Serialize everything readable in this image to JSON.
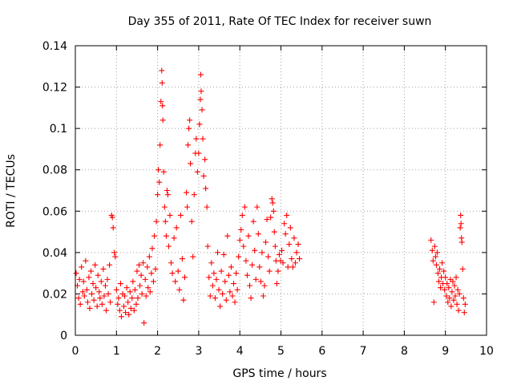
{
  "chart_data": {
    "type": "scatter",
    "title": "Day 355 of 2011, Rate Of TEC Index for receiver suwn",
    "xlabel": "GPS time / hours",
    "ylabel": "ROTI / TECUs",
    "xlim": [
      0,
      10
    ],
    "ylim": [
      0,
      0.14
    ],
    "x_ticks": [
      0,
      1,
      2,
      3,
      4,
      5,
      6,
      7,
      8,
      9,
      10
    ],
    "y_ticks": [
      0,
      0.02,
      0.04,
      0.06,
      0.08,
      0.1,
      0.12,
      0.14
    ],
    "x_tick_labels": [
      "0",
      "1",
      "2",
      "3",
      "4",
      "5",
      "6",
      "7",
      "8",
      "9",
      "10"
    ],
    "y_tick_labels": [
      "0",
      "0.02",
      "0.04",
      "0.06",
      "0.08",
      "0.1",
      "0.12",
      "0.14"
    ],
    "grid": true,
    "legend": "none",
    "marker": "plus",
    "colors": {
      "points": "#ff0000",
      "grid": "#a0a0a0",
      "frame": "#000000"
    },
    "series": [
      {
        "points": [
          [
            0.02,
            0.03
          ],
          [
            0.05,
            0.024
          ],
          [
            0.08,
            0.018
          ],
          [
            0.1,
            0.027
          ],
          [
            0.12,
            0.015
          ],
          [
            0.15,
            0.033
          ],
          [
            0.18,
            0.021
          ],
          [
            0.2,
            0.026
          ],
          [
            0.22,
            0.019
          ],
          [
            0.25,
            0.036
          ],
          [
            0.28,
            0.022
          ],
          [
            0.3,
            0.016
          ],
          [
            0.33,
            0.028
          ],
          [
            0.35,
            0.013
          ],
          [
            0.38,
            0.031
          ],
          [
            0.4,
            0.02
          ],
          [
            0.43,
            0.025
          ],
          [
            0.45,
            0.017
          ],
          [
            0.48,
            0.034
          ],
          [
            0.5,
            0.023
          ],
          [
            0.53,
            0.014
          ],
          [
            0.55,
            0.029
          ],
          [
            0.58,
            0.021
          ],
          [
            0.6,
            0.018
          ],
          [
            0.63,
            0.026
          ],
          [
            0.65,
            0.015
          ],
          [
            0.68,
            0.032
          ],
          [
            0.7,
            0.019
          ],
          [
            0.73,
            0.024
          ],
          [
            0.75,
            0.012
          ],
          [
            0.78,
            0.027
          ],
          [
            0.8,
            0.02
          ],
          [
            0.83,
            0.034
          ],
          [
            0.85,
            0.016
          ],
          [
            0.88,
            0.058
          ],
          [
            0.9,
            0.057
          ],
          [
            0.92,
            0.052
          ],
          [
            0.95,
            0.04
          ],
          [
            0.97,
            0.038
          ],
          [
            1.0,
            0.022
          ],
          [
            1.03,
            0.015
          ],
          [
            1.05,
            0.018
          ],
          [
            1.08,
            0.012
          ],
          [
            1.1,
            0.025
          ],
          [
            1.12,
            0.009
          ],
          [
            1.15,
            0.02
          ],
          [
            1.18,
            0.014
          ],
          [
            1.2,
            0.019
          ],
          [
            1.22,
            0.011
          ],
          [
            1.25,
            0.023
          ],
          [
            1.28,
            0.016
          ],
          [
            1.3,
            0.01
          ],
          [
            1.33,
            0.021
          ],
          [
            1.35,
            0.013
          ],
          [
            1.38,
            0.018
          ],
          [
            1.4,
            0.026
          ],
          [
            1.43,
            0.012
          ],
          [
            1.45,
            0.022
          ],
          [
            1.48,
            0.015
          ],
          [
            1.5,
            0.031
          ],
          [
            1.52,
            0.018
          ],
          [
            1.55,
            0.034
          ],
          [
            1.57,
            0.024
          ],
          [
            1.6,
            0.029
          ],
          [
            1.62,
            0.02
          ],
          [
            1.65,
            0.035
          ],
          [
            1.67,
            0.006
          ],
          [
            1.7,
            0.027
          ],
          [
            1.72,
            0.019
          ],
          [
            1.75,
            0.033
          ],
          [
            1.77,
            0.023
          ],
          [
            1.8,
            0.038
          ],
          [
            1.82,
            0.021
          ],
          [
            1.85,
            0.03
          ],
          [
            1.87,
            0.042
          ],
          [
            1.9,
            0.026
          ],
          [
            1.92,
            0.048
          ],
          [
            1.95,
            0.032
          ],
          [
            1.97,
            0.055
          ],
          [
            2.0,
            0.068
          ],
          [
            2.02,
            0.08
          ],
          [
            2.04,
            0.074
          ],
          [
            2.06,
            0.092
          ],
          [
            2.08,
            0.113
          ],
          [
            2.1,
            0.128
          ],
          [
            2.11,
            0.122
          ],
          [
            2.12,
            0.111
          ],
          [
            2.13,
            0.104
          ],
          [
            2.15,
            0.079
          ],
          [
            2.17,
            0.062
          ],
          [
            2.19,
            0.055
          ],
          [
            2.21,
            0.048
          ],
          [
            2.23,
            0.07
          ],
          [
            2.25,
            0.068
          ],
          [
            2.27,
            0.043
          ],
          [
            2.3,
            0.058
          ],
          [
            2.33,
            0.035
          ],
          [
            2.36,
            0.03
          ],
          [
            2.4,
            0.047
          ],
          [
            2.43,
            0.026
          ],
          [
            2.46,
            0.052
          ],
          [
            2.5,
            0.031
          ],
          [
            2.53,
            0.022
          ],
          [
            2.56,
            0.058
          ],
          [
            2.6,
            0.037
          ],
          [
            2.63,
            0.017
          ],
          [
            2.66,
            0.028
          ],
          [
            2.7,
            0.069
          ],
          [
            2.72,
            0.062
          ],
          [
            2.74,
            0.092
          ],
          [
            2.76,
            0.1
          ],
          [
            2.78,
            0.104
          ],
          [
            2.8,
            0.083
          ],
          [
            2.83,
            0.055
          ],
          [
            2.86,
            0.038
          ],
          [
            2.89,
            0.068
          ],
          [
            2.92,
            0.088
          ],
          [
            2.94,
            0.095
          ],
          [
            2.97,
            0.079
          ],
          [
            3.0,
            0.088
          ],
          [
            3.02,
            0.102
          ],
          [
            3.04,
            0.114
          ],
          [
            3.05,
            0.126
          ],
          [
            3.06,
            0.118
          ],
          [
            3.08,
            0.109
          ],
          [
            3.1,
            0.095
          ],
          [
            3.12,
            0.077
          ],
          [
            3.15,
            0.085
          ],
          [
            3.17,
            0.071
          ],
          [
            3.2,
            0.062
          ],
          [
            3.22,
            0.043
          ],
          [
            3.25,
            0.028
          ],
          [
            3.28,
            0.019
          ],
          [
            3.31,
            0.035
          ],
          [
            3.34,
            0.024
          ],
          [
            3.37,
            0.03
          ],
          [
            3.4,
            0.018
          ],
          [
            3.43,
            0.027
          ],
          [
            3.46,
            0.04
          ],
          [
            3.49,
            0.022
          ],
          [
            3.52,
            0.014
          ],
          [
            3.55,
            0.031
          ],
          [
            3.58,
            0.02
          ],
          [
            3.61,
            0.039
          ],
          [
            3.64,
            0.026
          ],
          [
            3.67,
            0.017
          ],
          [
            3.7,
            0.048
          ],
          [
            3.73,
            0.029
          ],
          [
            3.76,
            0.021
          ],
          [
            3.79,
            0.033
          ],
          [
            3.82,
            0.019
          ],
          [
            3.85,
            0.025
          ],
          [
            3.88,
            0.016
          ],
          [
            3.91,
            0.03
          ],
          [
            3.94,
            0.022
          ],
          [
            3.97,
            0.038
          ],
          [
            4.0,
            0.046
          ],
          [
            4.03,
            0.051
          ],
          [
            4.06,
            0.058
          ],
          [
            4.09,
            0.043
          ],
          [
            4.12,
            0.062
          ],
          [
            4.15,
            0.036
          ],
          [
            4.18,
            0.029
          ],
          [
            4.21,
            0.048
          ],
          [
            4.24,
            0.024
          ],
          [
            4.27,
            0.018
          ],
          [
            4.3,
            0.034
          ],
          [
            4.33,
            0.055
          ],
          [
            4.36,
            0.041
          ],
          [
            4.39,
            0.027
          ],
          [
            4.42,
            0.062
          ],
          [
            4.45,
            0.049
          ],
          [
            4.48,
            0.033
          ],
          [
            4.51,
            0.026
          ],
          [
            4.54,
            0.04
          ],
          [
            4.57,
            0.019
          ],
          [
            4.6,
            0.024
          ],
          [
            4.63,
            0.045
          ],
          [
            4.66,
            0.056
          ],
          [
            4.69,
            0.038
          ],
          [
            4.72,
            0.031
          ],
          [
            4.75,
            0.057
          ],
          [
            4.78,
            0.066
          ],
          [
            4.8,
            0.064
          ],
          [
            4.82,
            0.06
          ],
          [
            4.84,
            0.05
          ],
          [
            4.86,
            0.043
          ],
          [
            4.88,
            0.036
          ],
          [
            4.9,
            0.025
          ],
          [
            4.93,
            0.031
          ],
          [
            4.96,
            0.039
          ],
          [
            4.99,
            0.036
          ],
          [
            5.02,
            0.041
          ],
          [
            5.05,
            0.035
          ],
          [
            5.08,
            0.054
          ],
          [
            5.11,
            0.049
          ],
          [
            5.14,
            0.058
          ],
          [
            5.17,
            0.033
          ],
          [
            5.2,
            0.044
          ],
          [
            5.23,
            0.052
          ],
          [
            5.26,
            0.037
          ],
          [
            5.29,
            0.033
          ],
          [
            5.32,
            0.047
          ],
          [
            5.35,
            0.035
          ],
          [
            5.38,
            0.04
          ],
          [
            5.42,
            0.044
          ],
          [
            5.45,
            0.037
          ],
          [
            8.65,
            0.046
          ],
          [
            8.68,
            0.041
          ],
          [
            8.7,
            0.036
          ],
          [
            8.72,
            0.016
          ],
          [
            8.74,
            0.043
          ],
          [
            8.76,
            0.038
          ],
          [
            8.78,
            0.034
          ],
          [
            8.8,
            0.04
          ],
          [
            8.82,
            0.03
          ],
          [
            8.84,
            0.026
          ],
          [
            8.86,
            0.032
          ],
          [
            8.88,
            0.023
          ],
          [
            8.9,
            0.028
          ],
          [
            8.92,
            0.035
          ],
          [
            8.94,
            0.025
          ],
          [
            8.96,
            0.031
          ],
          [
            8.98,
            0.022
          ],
          [
            9.0,
            0.028
          ],
          [
            9.02,
            0.019
          ],
          [
            9.04,
            0.025
          ],
          [
            9.06,
            0.016
          ],
          [
            9.08,
            0.023
          ],
          [
            9.1,
            0.018
          ],
          [
            9.12,
            0.027
          ],
          [
            9.14,
            0.014
          ],
          [
            9.16,
            0.021
          ],
          [
            9.18,
            0.026
          ],
          [
            9.2,
            0.017
          ],
          [
            9.22,
            0.024
          ],
          [
            9.24,
            0.019
          ],
          [
            9.26,
            0.028
          ],
          [
            9.28,
            0.015
          ],
          [
            9.3,
            0.022
          ],
          [
            9.32,
            0.012
          ],
          [
            9.34,
            0.02
          ],
          [
            9.36,
            0.052
          ],
          [
            9.37,
            0.058
          ],
          [
            9.38,
            0.054
          ],
          [
            9.39,
            0.047
          ],
          [
            9.4,
            0.045
          ],
          [
            9.42,
            0.032
          ],
          [
            9.44,
            0.018
          ],
          [
            9.46,
            0.011
          ],
          [
            9.48,
            0.015
          ]
        ]
      }
    ]
  }
}
